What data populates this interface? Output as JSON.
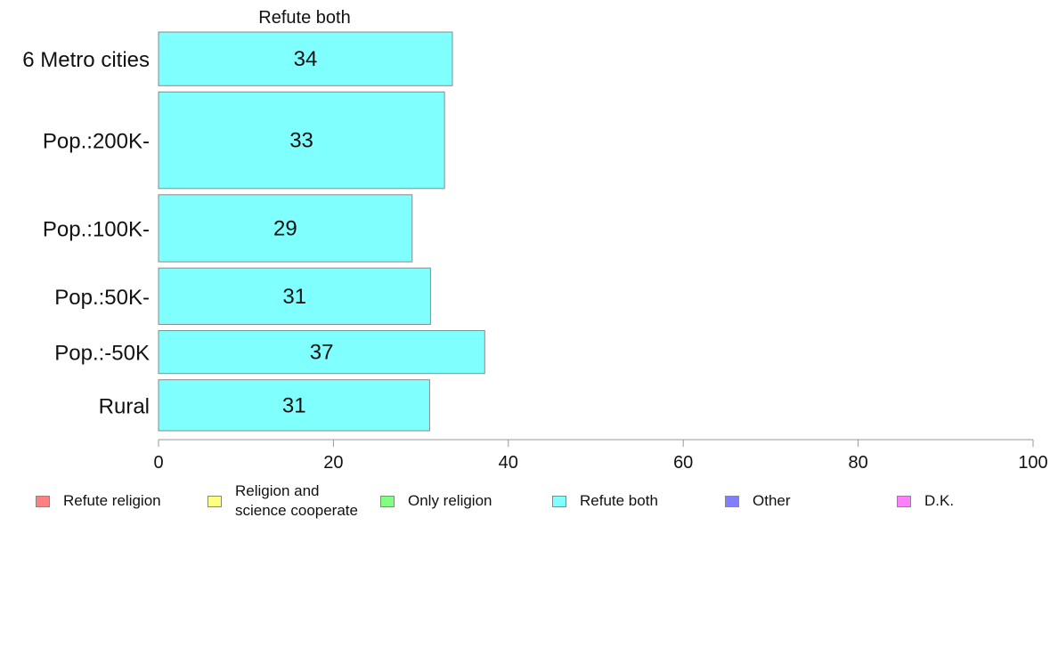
{
  "chart_data": {
    "type": "bar",
    "orientation": "horizontal",
    "title": "Refute both",
    "categories": [
      "6 Metro cities",
      "Pop.:200K-",
      "Pop.:100K-",
      "Pop.:50K-",
      "Pop.:-50K",
      "Rural"
    ],
    "series": [
      {
        "name": "Refute both",
        "color": "#80ffff",
        "values": [
          33.6,
          32.7,
          29.0,
          31.1,
          37.3,
          31.0
        ],
        "labels": [
          "34",
          "33",
          "29",
          "31",
          "37",
          "31"
        ]
      }
    ],
    "relative_bar_heights": [
      1.0,
      1.8,
      1.25,
      1.05,
      0.8,
      0.95
    ],
    "xlim": [
      0,
      100
    ],
    "xticks": [
      "0",
      "20",
      "40",
      "60",
      "80",
      "100"
    ],
    "grid": false,
    "legend_position": "bottom",
    "legend": [
      {
        "label": "Refute religion",
        "color": "#ff8080"
      },
      {
        "label": "Religion and\nscience cooperate",
        "color": "#ffff80"
      },
      {
        "label": "Only religion",
        "color": "#80ff80"
      },
      {
        "label": "Refute both",
        "color": "#80ffff"
      },
      {
        "label": "Other",
        "color": "#8080ff"
      },
      {
        "label": "D.K.",
        "color": "#ff80ff"
      }
    ]
  }
}
